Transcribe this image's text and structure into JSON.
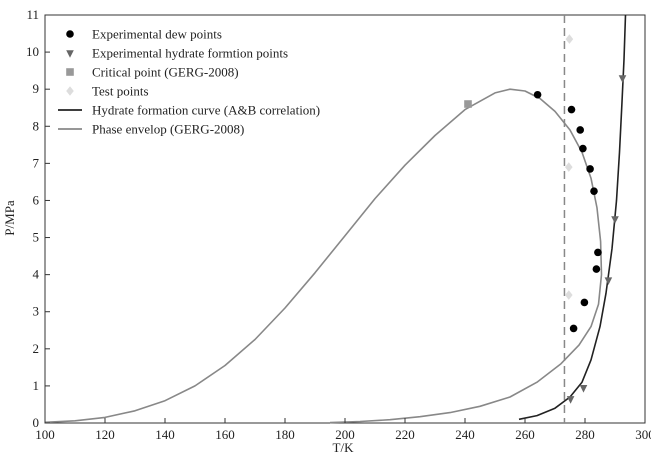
{
  "chart_data": {
    "type": "scatter",
    "xlabel": "T/K",
    "ylabel": "P/MPa",
    "xlim": [
      100,
      300
    ],
    "ylim": [
      0,
      11
    ],
    "x_ticks": [
      100,
      120,
      140,
      160,
      180,
      200,
      220,
      240,
      260,
      280,
      300
    ],
    "y_ticks": [
      0,
      1,
      2,
      3,
      4,
      5,
      6,
      7,
      8,
      9,
      10,
      11
    ],
    "grid": false,
    "legend_position": "top-left",
    "reference_line": {
      "x": 273.15,
      "style": "dashed",
      "color": "#888888"
    },
    "series": [
      {
        "name": "Experimental dew points",
        "kind": "scatter",
        "marker": "circle",
        "color": "#000000",
        "points": [
          [
            264.2,
            8.85
          ],
          [
            275.5,
            8.45
          ],
          [
            278.4,
            7.9
          ],
          [
            279.3,
            7.4
          ],
          [
            281.7,
            6.85
          ],
          [
            283.0,
            6.25
          ],
          [
            284.3,
            4.6
          ],
          [
            283.8,
            4.15
          ],
          [
            279.8,
            3.25
          ],
          [
            276.2,
            2.55
          ]
        ]
      },
      {
        "name": "Experimental hydrate formtion points",
        "kind": "scatter",
        "marker": "triangle-down",
        "color": "#666666",
        "points": [
          [
            292.5,
            9.3
          ],
          [
            290.0,
            5.5
          ],
          [
            287.8,
            3.85
          ],
          [
            279.5,
            0.95
          ],
          [
            275.2,
            0.65
          ]
        ]
      },
      {
        "name": "Critical point (GERG-2008)",
        "kind": "scatter",
        "marker": "square",
        "color": "#999999",
        "points": [
          [
            241.0,
            8.6
          ]
        ]
      },
      {
        "name": "Test points",
        "kind": "scatter",
        "marker": "diamond",
        "color": "#dddddd",
        "points": [
          [
            274.8,
            10.35
          ],
          [
            274.6,
            6.9
          ],
          [
            274.6,
            3.45
          ]
        ]
      },
      {
        "name": "Hydrate formation curve (A&B correlation)",
        "kind": "line",
        "color": "#222222",
        "points": [
          [
            258,
            0.1
          ],
          [
            264,
            0.2
          ],
          [
            270,
            0.4
          ],
          [
            275,
            0.7
          ],
          [
            279,
            1.1
          ],
          [
            282,
            1.7
          ],
          [
            285,
            2.6
          ],
          [
            287,
            3.5
          ],
          [
            289,
            4.7
          ],
          [
            290.5,
            6.0
          ],
          [
            291.5,
            7.3
          ],
          [
            292.3,
            8.6
          ],
          [
            293,
            9.8
          ],
          [
            293.5,
            11.0
          ]
        ]
      },
      {
        "name": "Phase envelop (GERG-2008)",
        "kind": "line",
        "color": "#888888",
        "points": [
          [
            100,
            0.02
          ],
          [
            110,
            0.06
          ],
          [
            120,
            0.15
          ],
          [
            130,
            0.33
          ],
          [
            140,
            0.6
          ],
          [
            150,
            1.0
          ],
          [
            160,
            1.55
          ],
          [
            170,
            2.25
          ],
          [
            180,
            3.1
          ],
          [
            190,
            4.05
          ],
          [
            200,
            5.05
          ],
          [
            210,
            6.05
          ],
          [
            220,
            6.95
          ],
          [
            230,
            7.75
          ],
          [
            240,
            8.45
          ],
          [
            250,
            8.9
          ],
          [
            255,
            9.0
          ],
          [
            260,
            8.95
          ],
          [
            265,
            8.75
          ],
          [
            270,
            8.4
          ],
          [
            275,
            7.9
          ],
          [
            279,
            7.3
          ],
          [
            282,
            6.6
          ],
          [
            284,
            5.8
          ],
          [
            285.2,
            4.9
          ],
          [
            285.5,
            4.0
          ],
          [
            284.5,
            3.2
          ],
          [
            282,
            2.6
          ],
          [
            278,
            2.1
          ],
          [
            272,
            1.6
          ],
          [
            264,
            1.1
          ],
          [
            255,
            0.7
          ],
          [
            245,
            0.45
          ],
          [
            235,
            0.28
          ],
          [
            225,
            0.17
          ],
          [
            215,
            0.09
          ],
          [
            205,
            0.04
          ],
          [
            195,
            0.01
          ]
        ]
      }
    ]
  }
}
